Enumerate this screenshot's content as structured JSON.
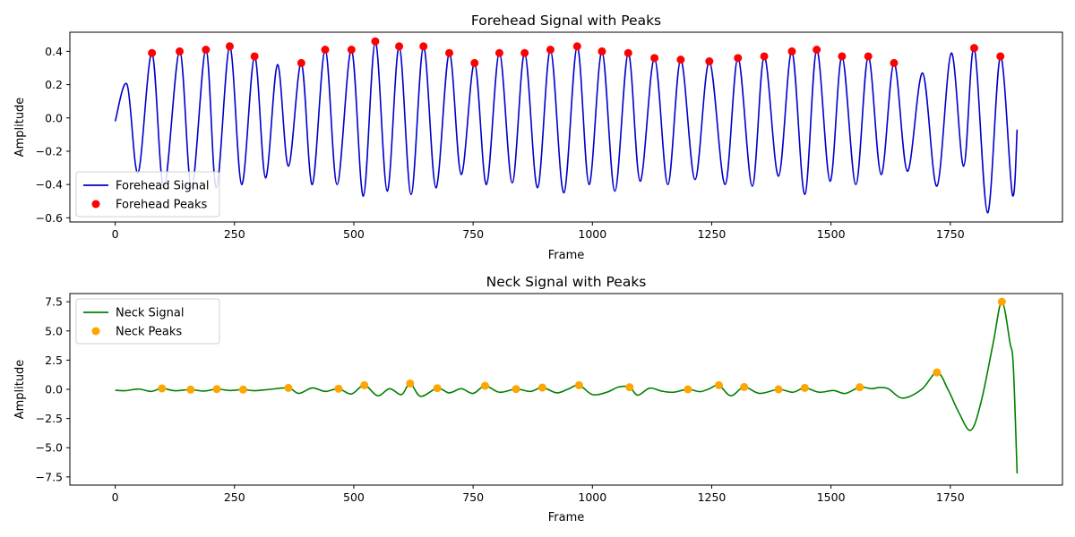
{
  "chart_data": [
    {
      "type": "line",
      "title": "Forehead Signal with Peaks",
      "xlabel": "Frame",
      "ylabel": "Amplitude",
      "xlim": [
        -95,
        1985
      ],
      "ylim": [
        -0.625,
        0.515
      ],
      "xticks": [
        0,
        250,
        500,
        750,
        1000,
        1250,
        1500,
        1750
      ],
      "yticks": [
        -0.6,
        -0.4,
        -0.2,
        0.0,
        0.2,
        0.4
      ],
      "ytick_labels": [
        "−0.6",
        "−0.4",
        "−0.2",
        "0.0",
        "0.2",
        "0.4"
      ],
      "legend_position": "lower-left",
      "series": [
        {
          "name": "Forehead Signal",
          "kind": "line",
          "color": "#0000cc",
          "x": [
            0,
            25,
            48,
            77,
            102,
            135,
            160,
            190,
            212,
            240,
            265,
            292,
            315,
            340,
            363,
            390,
            413,
            440,
            465,
            495,
            520,
            545,
            570,
            595,
            620,
            646,
            672,
            700,
            725,
            753,
            778,
            805,
            832,
            858,
            885,
            912,
            940,
            968,
            993,
            1020,
            1047,
            1075,
            1100,
            1130,
            1158,
            1185,
            1215,
            1245,
            1278,
            1305,
            1335,
            1360,
            1390,
            1418,
            1445,
            1470,
            1498,
            1523,
            1552,
            1578,
            1605,
            1632,
            1660,
            1692,
            1722,
            1752,
            1778,
            1800,
            1828,
            1855,
            1880,
            1890
          ],
          "y": [
            -0.02,
            0.2,
            -0.33,
            0.39,
            -0.42,
            0.4,
            -0.42,
            0.41,
            -0.42,
            0.43,
            -0.4,
            0.37,
            -0.36,
            0.32,
            -0.29,
            0.33,
            -0.4,
            0.41,
            -0.4,
            0.41,
            -0.47,
            0.46,
            -0.44,
            0.43,
            -0.46,
            0.43,
            -0.42,
            0.39,
            -0.34,
            0.33,
            -0.4,
            0.39,
            -0.39,
            0.39,
            -0.42,
            0.41,
            -0.45,
            0.43,
            -0.4,
            0.4,
            -0.44,
            0.39,
            -0.38,
            0.36,
            -0.4,
            0.35,
            -0.37,
            0.34,
            -0.4,
            0.36,
            -0.41,
            0.37,
            -0.35,
            0.4,
            -0.46,
            0.41,
            -0.38,
            0.37,
            -0.4,
            0.37,
            -0.34,
            0.33,
            -0.32,
            0.27,
            -0.41,
            0.39,
            -0.29,
            0.42,
            -0.57,
            0.37,
            -0.46,
            -0.07
          ]
        },
        {
          "name": "Forehead Peaks",
          "kind": "scatter",
          "color": "#ff0000",
          "x": [
            77,
            135,
            190,
            240,
            292,
            390,
            440,
            495,
            545,
            595,
            646,
            700,
            753,
            805,
            858,
            912,
            968,
            1020,
            1075,
            1130,
            1185,
            1245,
            1305,
            1360,
            1418,
            1470,
            1523,
            1578,
            1632,
            1800,
            1855
          ],
          "y": [
            0.39,
            0.4,
            0.41,
            0.43,
            0.37,
            0.33,
            0.41,
            0.41,
            0.46,
            0.43,
            0.43,
            0.39,
            0.33,
            0.39,
            0.39,
            0.41,
            0.43,
            0.4,
            0.39,
            0.36,
            0.35,
            0.34,
            0.36,
            0.37,
            0.4,
            0.41,
            0.37,
            0.37,
            0.33,
            0.42,
            0.37
          ]
        }
      ]
    },
    {
      "type": "line",
      "title": "Neck Signal with Peaks",
      "xlabel": "Frame",
      "ylabel": "Amplitude",
      "xlim": [
        -95,
        1985
      ],
      "ylim": [
        -8.2,
        8.2
      ],
      "xticks": [
        0,
        250,
        500,
        750,
        1000,
        1250,
        1500,
        1750
      ],
      "yticks": [
        -7.5,
        -5.0,
        -2.5,
        0.0,
        2.5,
        5.0,
        7.5
      ],
      "ytick_labels": [
        "−7.5",
        "−5.0",
        "−2.5",
        "0.0",
        "2.5",
        "5.0",
        "7.5"
      ],
      "legend_position": "upper-left",
      "series": [
        {
          "name": "Neck Signal",
          "kind": "line",
          "color": "#008000",
          "x": [
            0,
            20,
            50,
            75,
            98,
            125,
            158,
            185,
            213,
            240,
            268,
            292,
            325,
            363,
            385,
            413,
            440,
            468,
            495,
            522,
            550,
            575,
            600,
            618,
            640,
            675,
            700,
            725,
            750,
            775,
            805,
            840,
            870,
            895,
            925,
            948,
            972,
            1000,
            1030,
            1055,
            1078,
            1095,
            1120,
            1145,
            1170,
            1200,
            1225,
            1245,
            1265,
            1290,
            1318,
            1350,
            1390,
            1420,
            1445,
            1475,
            1505,
            1530,
            1560,
            1585,
            1600,
            1620,
            1650,
            1690,
            1722,
            1745,
            1768,
            1793,
            1815,
            1840,
            1858,
            1875,
            1882,
            1890
          ],
          "y": [
            -0.08,
            -0.12,
            0.02,
            -0.18,
            0.08,
            -0.12,
            -0.02,
            -0.15,
            0.02,
            -0.1,
            -0.02,
            -0.12,
            0.0,
            0.12,
            -0.35,
            0.12,
            -0.18,
            0.05,
            -0.4,
            0.35,
            -0.55,
            0.05,
            -0.45,
            0.5,
            -0.6,
            0.1,
            -0.3,
            0.05,
            -0.35,
            0.3,
            -0.25,
            0.02,
            -0.18,
            0.15,
            -0.3,
            0.0,
            0.35,
            -0.45,
            -0.25,
            0.2,
            0.18,
            -0.5,
            0.1,
            -0.15,
            -0.25,
            0.0,
            -0.2,
            0.05,
            0.35,
            -0.55,
            0.2,
            -0.35,
            0.0,
            -0.25,
            0.12,
            -0.25,
            -0.1,
            -0.35,
            0.18,
            0.05,
            0.15,
            0.05,
            -0.75,
            0.0,
            1.45,
            0.0,
            -2.0,
            -3.5,
            -1.0,
            4.0,
            7.5,
            4.0,
            2.0,
            -7.2
          ]
        },
        {
          "name": "Neck Peaks",
          "kind": "scatter",
          "color": "#ffa500",
          "x": [
            98,
            158,
            213,
            268,
            363,
            468,
            522,
            618,
            675,
            775,
            840,
            895,
            972,
            1078,
            1200,
            1265,
            1318,
            1390,
            1445,
            1560,
            1722,
            1858
          ],
          "y": [
            0.08,
            -0.02,
            0.02,
            -0.02,
            0.12,
            0.05,
            0.35,
            0.5,
            0.1,
            0.3,
            0.02,
            0.15,
            0.35,
            0.18,
            0.0,
            0.35,
            0.2,
            0.0,
            0.12,
            0.18,
            1.45,
            7.5
          ]
        }
      ]
    }
  ]
}
